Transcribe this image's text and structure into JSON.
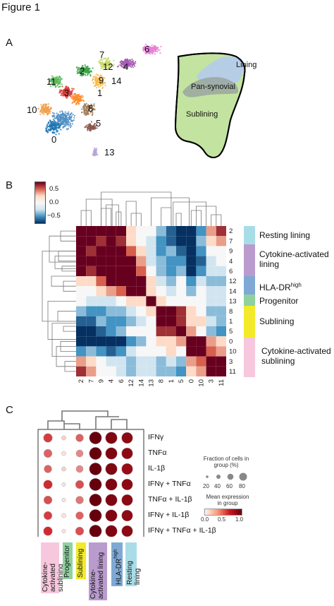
{
  "figure_title": "Figure 1",
  "panels": {
    "a": {
      "letter": "A",
      "clusters": [
        "6",
        "7",
        "2",
        "12",
        "4",
        "11",
        "9",
        "14",
        "3",
        "1",
        "10",
        "8",
        "5",
        "0",
        "13"
      ],
      "regions": {
        "lining": "Lining",
        "pan": "Pan-synovial",
        "sublining": "Sublining"
      }
    },
    "b": {
      "letter": "B",
      "colorbar_ticks": [
        "0.5",
        "0.0",
        "−0.5"
      ],
      "categories": [
        {
          "label": "Resting lining",
          "color": "#a8dde8"
        },
        {
          "label": "Cytokine-activated lining",
          "color": "#b99ccd"
        },
        {
          "label": "HLA-DR",
          "sup": "high",
          "color": "#7fa9d4"
        },
        {
          "label": "Progenitor",
          "color": "#8fd29f"
        },
        {
          "label": "Sublining",
          "color": "#f2ea2a"
        },
        {
          "label": "Cytokine-activated sublining",
          "color": "#f7c8dd"
        }
      ],
      "order": [
        "2",
        "7",
        "9",
        "4",
        "6",
        "12",
        "14",
        "13",
        "8",
        "1",
        "5",
        "0",
        "10",
        "3",
        "11"
      ]
    },
    "c": {
      "letter": "C",
      "row_labels": [
        "IFNγ",
        "TNFα",
        "IL-1β",
        "IFNγ + TNFα",
        "TNFα + IL-1β",
        "IFNγ + IL-1β",
        "IFNγ + TNFα + IL-1β"
      ],
      "col_labels": [
        {
          "label": "Cytokine-activated sublining",
          "color": "#f7c8dd"
        },
        {
          "label": "Progenitor",
          "color": "#8fd29f"
        },
        {
          "label": "Sublining",
          "color": "#f2ea2a"
        },
        {
          "label": "Cytokine-activated lining",
          "color": "#b99ccd"
        },
        {
          "label": "HLA-DR",
          "sup": "high",
          "color": "#7fa9d4"
        },
        {
          "label": "Resting lining",
          "color": "#a8dde8"
        }
      ],
      "legend": {
        "fraction_title": "Fraction of cells in group (%)",
        "fraction_ticks": [
          "20",
          "40",
          "60",
          "80"
        ],
        "mean_title": "Mean expression in group",
        "mean_ticks": [
          "0.0",
          "0.5",
          "1.0"
        ]
      }
    }
  },
  "chart_data": [
    {
      "type": "heatmap",
      "colorbar_range": [
        -0.5,
        0.5
      ],
      "rows": [
        "2",
        "7",
        "9",
        "4",
        "6",
        "12",
        "14",
        "13",
        "8",
        "1",
        "5",
        "0",
        "10",
        "3",
        "11"
      ],
      "cols": [
        "2",
        "7",
        "9",
        "4",
        "6",
        "12",
        "14",
        "13",
        "8",
        "1",
        "5",
        "0",
        "10",
        "3",
        "11"
      ],
      "values": [
        [
          1.0,
          0.9,
          0.5,
          0.6,
          0.5,
          0.1,
          0.0,
          0.0,
          -0.2,
          -0.4,
          -0.6,
          -0.6,
          -0.3,
          0.2,
          0.4
        ],
        [
          0.9,
          1.0,
          0.4,
          0.5,
          0.4,
          0.1,
          0.0,
          -0.1,
          -0.3,
          -0.4,
          -0.5,
          -0.5,
          -0.2,
          0.1,
          0.2
        ],
        [
          0.5,
          0.4,
          1.0,
          0.7,
          0.6,
          0.3,
          0.1,
          -0.1,
          -0.3,
          -0.2,
          -0.4,
          -0.5,
          -0.3,
          0.0,
          0.0
        ],
        [
          0.6,
          0.5,
          0.7,
          1.0,
          0.9,
          0.5,
          0.2,
          -0.1,
          -0.2,
          -0.3,
          -0.3,
          -0.6,
          -0.4,
          -0.1,
          0.0
        ],
        [
          0.5,
          0.4,
          0.6,
          0.9,
          1.0,
          0.6,
          0.3,
          0.0,
          -0.2,
          -0.3,
          -0.2,
          -0.5,
          -0.3,
          -0.1,
          -0.1
        ],
        [
          0.1,
          0.1,
          0.3,
          0.5,
          0.6,
          1.0,
          0.5,
          0.1,
          -0.1,
          -0.2,
          0.0,
          -0.3,
          -0.1,
          -0.2,
          -0.2
        ],
        [
          0.0,
          0.0,
          0.1,
          0.2,
          0.3,
          0.5,
          1.0,
          0.1,
          0.0,
          -0.1,
          0.0,
          -0.2,
          0.0,
          -0.1,
          -0.1
        ],
        [
          0.0,
          -0.1,
          -0.1,
          -0.1,
          0.0,
          0.1,
          0.1,
          1.0,
          0.1,
          0.0,
          0.0,
          0.0,
          0.0,
          -0.1,
          -0.1
        ],
        [
          -0.2,
          -0.3,
          -0.3,
          -0.2,
          -0.2,
          -0.1,
          0.0,
          0.1,
          1.0,
          0.5,
          0.4,
          0.1,
          0.0,
          -0.2,
          -0.2
        ],
        [
          -0.4,
          -0.4,
          -0.2,
          -0.3,
          -0.3,
          -0.2,
          -0.1,
          0.0,
          0.5,
          1.0,
          0.4,
          0.1,
          0.1,
          -0.1,
          -0.2
        ],
        [
          -0.6,
          -0.5,
          -0.4,
          -0.3,
          -0.2,
          0.0,
          0.0,
          0.0,
          0.4,
          0.4,
          1.0,
          0.2,
          0.0,
          -0.2,
          -0.3
        ],
        [
          -0.6,
          -0.5,
          -0.5,
          -0.6,
          -0.5,
          -0.3,
          -0.2,
          0.0,
          0.1,
          0.1,
          0.2,
          1.0,
          0.5,
          0.2,
          0.1
        ],
        [
          -0.3,
          -0.2,
          -0.3,
          -0.4,
          -0.3,
          -0.1,
          0.0,
          0.0,
          0.0,
          0.1,
          0.0,
          0.5,
          1.0,
          0.3,
          0.2
        ],
        [
          0.2,
          0.1,
          0.0,
          -0.1,
          -0.1,
          -0.2,
          -0.1,
          -0.1,
          -0.2,
          -0.1,
          -0.2,
          0.2,
          0.3,
          1.0,
          0.6
        ],
        [
          0.4,
          0.2,
          0.0,
          0.0,
          -0.1,
          -0.2,
          -0.1,
          -0.1,
          -0.2,
          -0.2,
          -0.3,
          0.1,
          0.2,
          0.6,
          1.0
        ]
      ]
    },
    {
      "type": "scatter",
      "subtype": "dotplot",
      "rows": [
        "IFNγ",
        "TNFα",
        "IL-1β",
        "IFNγ + TNFα",
        "TNFα + IL-1β",
        "IFNγ + IL-1β",
        "IFNγ + TNFα + IL-1β"
      ],
      "cols": [
        "Cytokine-activated sublining",
        "Progenitor",
        "Sublining",
        "Cytokine-activated lining",
        "HLA-DRhigh",
        "Resting lining"
      ],
      "fraction": [
        [
          60,
          20,
          50,
          90,
          85,
          80
        ],
        [
          55,
          20,
          45,
          90,
          85,
          80
        ],
        [
          50,
          20,
          45,
          90,
          85,
          80
        ],
        [
          60,
          15,
          55,
          90,
          85,
          80
        ],
        [
          55,
          15,
          50,
          90,
          85,
          80
        ],
        [
          55,
          20,
          50,
          90,
          85,
          80
        ],
        [
          60,
          15,
          55,
          90,
          85,
          80
        ]
      ],
      "mean": [
        [
          0.5,
          0.1,
          0.4,
          1.0,
          0.9,
          0.85
        ],
        [
          0.4,
          0.05,
          0.3,
          1.0,
          0.9,
          0.85
        ],
        [
          0.4,
          0.1,
          0.3,
          1.0,
          0.9,
          0.8
        ],
        [
          0.55,
          0.05,
          0.45,
          1.0,
          0.9,
          0.85
        ],
        [
          0.45,
          0.05,
          0.35,
          1.0,
          0.9,
          0.85
        ],
        [
          0.5,
          0.05,
          0.4,
          1.0,
          0.9,
          0.85
        ],
        [
          0.55,
          0.05,
          0.45,
          1.0,
          0.9,
          0.85
        ]
      ]
    }
  ]
}
